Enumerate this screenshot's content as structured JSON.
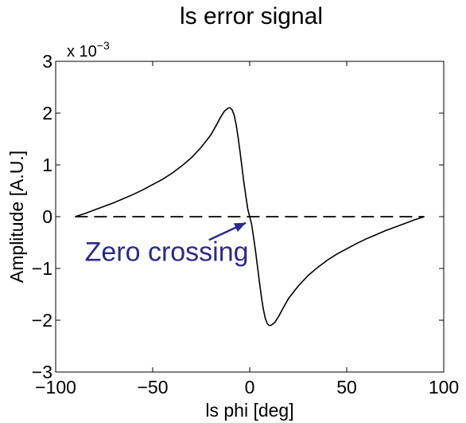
{
  "chart_data": {
    "type": "line",
    "title": "ls error signal",
    "xlabel": "ls phi [deg]",
    "ylabel": "Amplitude [A.U.]",
    "xlim": [
      -100,
      100
    ],
    "ylim": [
      -3,
      3
    ],
    "x_ticks": [
      -100,
      -50,
      0,
      50,
      100
    ],
    "y_ticks": [
      -3,
      -2,
      -1,
      0,
      1,
      2,
      3
    ],
    "y_tick_labels": [
      "−3",
      "−2",
      "−1",
      "0",
      "1",
      "2",
      "3"
    ],
    "x_tick_labels": [
      "−100",
      "−50",
      "0",
      "50",
      "100"
    ],
    "y_multiplier": {
      "base": "x 10",
      "exponent": "−3"
    },
    "grid": false,
    "series": [
      {
        "style": "solid",
        "color": "#000000",
        "x": [
          -90,
          -85,
          -80,
          -75,
          -70,
          -65,
          -60,
          -55,
          -50,
          -45,
          -40,
          -35,
          -30,
          -25,
          -20,
          -17,
          -15,
          -13,
          -11,
          -10,
          -9,
          -8,
          -7,
          -6,
          -5,
          -4,
          -3,
          -2,
          -1,
          0,
          1,
          2,
          3,
          4,
          5,
          6,
          7,
          8,
          9,
          10,
          11,
          13,
          15,
          17,
          20,
          25,
          30,
          35,
          40,
          45,
          50,
          55,
          60,
          65,
          70,
          75,
          80,
          85,
          90
        ],
        "y": [
          0.0,
          0.06,
          0.13,
          0.2,
          0.27,
          0.35,
          0.43,
          0.52,
          0.62,
          0.72,
          0.84,
          0.98,
          1.14,
          1.34,
          1.58,
          1.78,
          1.92,
          2.04,
          2.1,
          2.1,
          2.06,
          1.96,
          1.78,
          1.54,
          1.26,
          0.96,
          0.66,
          0.4,
          0.15,
          0.0,
          -0.15,
          -0.4,
          -0.66,
          -0.96,
          -1.26,
          -1.54,
          -1.78,
          -1.96,
          -2.06,
          -2.1,
          -2.1,
          -2.04,
          -1.92,
          -1.78,
          -1.58,
          -1.34,
          -1.14,
          -0.98,
          -0.84,
          -0.72,
          -0.62,
          -0.52,
          -0.43,
          -0.35,
          -0.27,
          -0.2,
          -0.13,
          -0.06,
          0.0
        ]
      },
      {
        "style": "dashed",
        "color": "#000000",
        "x": [
          -90,
          90
        ],
        "y": [
          0,
          0
        ]
      }
    ],
    "annotations": [
      {
        "text": "Zero crossing",
        "color": "#2b2b8a",
        "text_at": [
          -85,
          -0.85
        ],
        "arrow_from": [
          -21,
          -0.45
        ],
        "arrow_to": [
          -2,
          -0.12
        ]
      }
    ]
  }
}
